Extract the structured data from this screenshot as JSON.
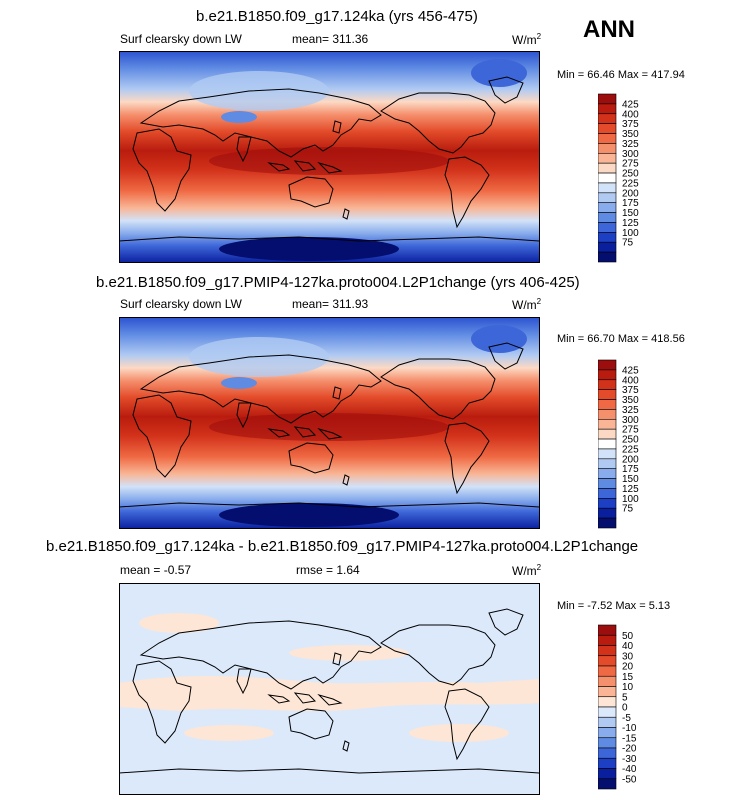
{
  "season": "ANN",
  "units_base": "W/m",
  "units_exp": "2",
  "panels": [
    {
      "title": "b.e21.B1850.f09_g17.124ka (yrs 456-475)",
      "variable": "Surf clearsky down LW",
      "mean_label": "mean= 311.36",
      "minmax": "Min =  66.46 Max = 417.94",
      "colorbar": {
        "labels": [
          "425",
          "400",
          "375",
          "350",
          "325",
          "300",
          "275",
          "250",
          "225",
          "200",
          "175",
          "150",
          "125",
          "100",
          "75"
        ],
        "colors": [
          "#9c0d0d",
          "#b91c0e",
          "#d2321a",
          "#e34b2a",
          "#ef6a44",
          "#f5906d",
          "#f9b596",
          "#fcd9c4",
          "#ffffff",
          "#d2e2f8",
          "#b0caf2",
          "#88acec",
          "#5f8be3",
          "#3d66d8",
          "#1c3fc4",
          "#0a1f9e",
          "#040e6e"
        ]
      }
    },
    {
      "title": "b.e21.B1850.f09_g17.PMIP4-127ka.proto004.L2P1change (yrs 406-425)",
      "variable": "Surf clearsky down LW",
      "mean_label": "mean= 311.93",
      "minmax": "Min =  66.70 Max = 418.56",
      "colorbar": {
        "labels": [
          "425",
          "400",
          "375",
          "350",
          "325",
          "300",
          "275",
          "250",
          "225",
          "200",
          "175",
          "150",
          "125",
          "100",
          "75"
        ],
        "colors": [
          "#9c0d0d",
          "#b91c0e",
          "#d2321a",
          "#e34b2a",
          "#ef6a44",
          "#f5906d",
          "#f9b596",
          "#fcd9c4",
          "#ffffff",
          "#d2e2f8",
          "#b0caf2",
          "#88acec",
          "#5f8be3",
          "#3d66d8",
          "#1c3fc4",
          "#0a1f9e",
          "#040e6e"
        ]
      }
    },
    {
      "title": "b.e21.B1850.f09_g17.124ka - b.e21.B1850.f09_g17.PMIP4-127ka.proto004.L2P1change",
      "mean_label": "mean =  -0.57",
      "rmse_label": "rmse =   1.64",
      "minmax": "Min =  -7.52 Max =   5.13",
      "colorbar": {
        "labels": [
          "50",
          "40",
          "30",
          "20",
          "15",
          "10",
          "5",
          "0",
          "-5",
          "-10",
          "-15",
          "-20",
          "-30",
          "-40",
          "-50"
        ],
        "colors": [
          "#9c0d0d",
          "#b91c0e",
          "#d2321a",
          "#e34b2a",
          "#ef6a44",
          "#f5906d",
          "#f9b596",
          "#fde6d6",
          "#dce9fb",
          "#b0caf2",
          "#88acec",
          "#5f8be3",
          "#3d66d8",
          "#1c3fc4",
          "#0a1f9e",
          "#040e6e"
        ]
      }
    }
  ]
}
